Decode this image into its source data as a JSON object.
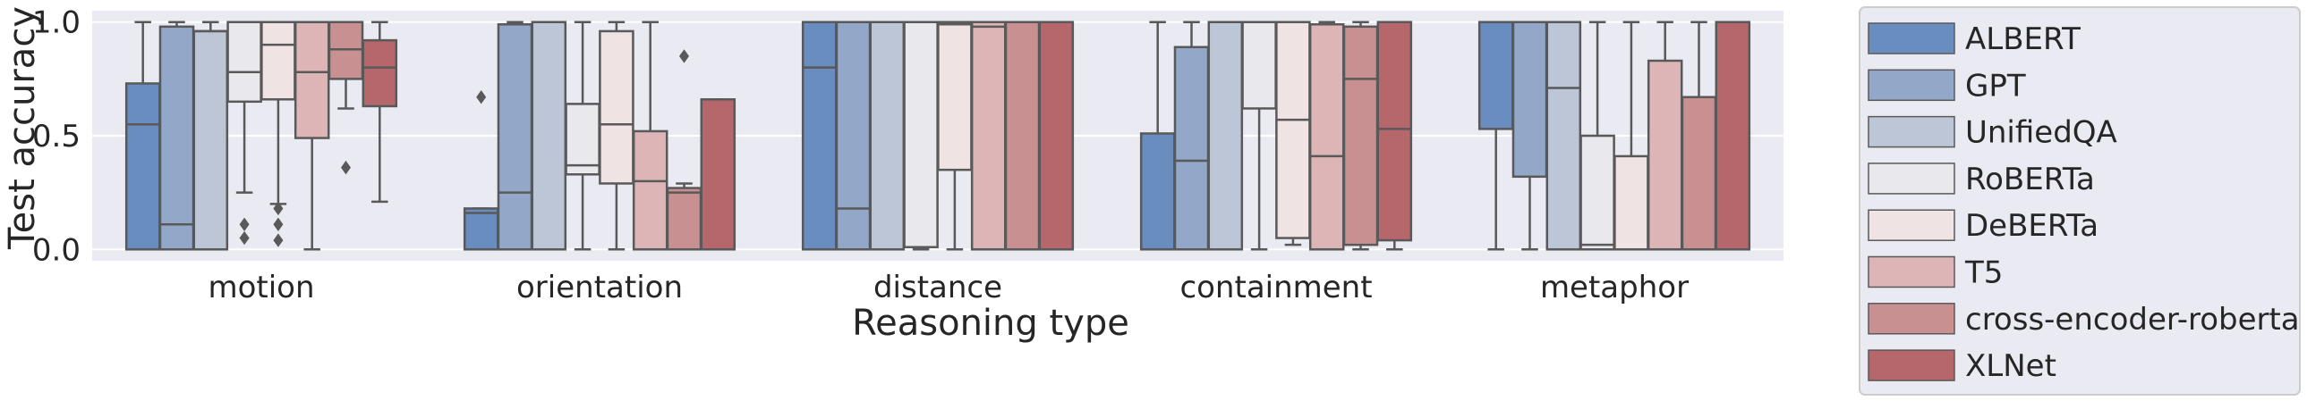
{
  "chart_data": {
    "type": "box",
    "title": "",
    "xlabel": "Reasoning type",
    "ylabel": "Test accuracy",
    "ylim": [
      -0.05,
      1.05
    ],
    "y_ticks": [
      0.0,
      0.5,
      1.0
    ],
    "y_tick_labels": [
      "0.0",
      "0.5",
      "1.0"
    ],
    "grid": true,
    "legend_position": "outside-right",
    "categories": [
      "motion",
      "orientation",
      "distance",
      "containment",
      "metaphor"
    ],
    "series": [
      {
        "name": "ALBERT",
        "color": "#6a8dbf",
        "boxes": [
          {
            "whislo": 0.0,
            "q1": 0.0,
            "med": 0.55,
            "q3": 0.73,
            "whishi": 1.0,
            "fliers": []
          },
          {
            "whislo": 0.0,
            "q1": 0.0,
            "med": 0.16,
            "q3": 0.18,
            "whishi": 0.18,
            "fliers": [
              0.67
            ]
          },
          {
            "whislo": 0.0,
            "q1": 0.0,
            "med": 0.8,
            "q3": 1.0,
            "whishi": 1.0,
            "fliers": []
          },
          {
            "whislo": 0.0,
            "q1": 0.0,
            "med": 0.0,
            "q3": 0.51,
            "whishi": 1.0,
            "fliers": []
          },
          {
            "whislo": 0.0,
            "q1": 0.53,
            "med": 1.0,
            "q3": 1.0,
            "whishi": 1.0,
            "fliers": []
          }
        ]
      },
      {
        "name": "GPT",
        "color": "#93a7c8",
        "boxes": [
          {
            "whislo": 0.0,
            "q1": 0.0,
            "med": 0.11,
            "q3": 0.98,
            "whishi": 1.0,
            "fliers": []
          },
          {
            "whislo": 0.0,
            "q1": 0.0,
            "med": 0.25,
            "q3": 0.99,
            "whishi": 1.0,
            "fliers": []
          },
          {
            "whislo": 0.0,
            "q1": 0.0,
            "med": 0.18,
            "q3": 1.0,
            "whishi": 1.0,
            "fliers": []
          },
          {
            "whislo": 0.0,
            "q1": 0.0,
            "med": 0.39,
            "q3": 0.89,
            "whishi": 1.0,
            "fliers": []
          },
          {
            "whislo": 0.0,
            "q1": 0.32,
            "med": 1.0,
            "q3": 1.0,
            "whishi": 1.0,
            "fliers": []
          }
        ]
      },
      {
        "name": "UnifiedQA",
        "color": "#bcc6d6",
        "boxes": [
          {
            "whislo": 0.0,
            "q1": 0.0,
            "med": 0.96,
            "q3": 0.96,
            "whishi": 1.0,
            "fliers": []
          },
          {
            "whislo": 0.0,
            "q1": 0.0,
            "med": 1.0,
            "q3": 1.0,
            "whishi": 1.0,
            "fliers": []
          },
          {
            "whislo": 0.0,
            "q1": 0.0,
            "med": 1.0,
            "q3": 1.0,
            "whishi": 1.0,
            "fliers": []
          },
          {
            "whislo": 0.0,
            "q1": 0.0,
            "med": 1.0,
            "q3": 1.0,
            "whishi": 1.0,
            "fliers": []
          },
          {
            "whislo": 0.0,
            "q1": 0.0,
            "med": 0.71,
            "q3": 1.0,
            "whishi": 1.0,
            "fliers": []
          }
        ]
      },
      {
        "name": "RoBERTa",
        "color": "#e8e8ed",
        "boxes": [
          {
            "whislo": 0.25,
            "q1": 0.65,
            "med": 0.78,
            "q3": 1.0,
            "whishi": 1.0,
            "fliers": [
              0.11,
              0.05
            ]
          },
          {
            "whislo": 0.0,
            "q1": 0.33,
            "med": 0.37,
            "q3": 0.64,
            "whishi": 1.0,
            "fliers": []
          },
          {
            "whislo": 0.0,
            "q1": 0.01,
            "med": 1.0,
            "q3": 1.0,
            "whishi": 1.0,
            "fliers": []
          },
          {
            "whislo": 0.0,
            "q1": 0.62,
            "med": 1.0,
            "q3": 1.0,
            "whishi": 1.0,
            "fliers": []
          },
          {
            "whislo": 0.0,
            "q1": 0.0,
            "med": 0.02,
            "q3": 0.5,
            "whishi": 1.0,
            "fliers": []
          }
        ]
      },
      {
        "name": "DeBERTa",
        "color": "#f0e3e4",
        "boxes": [
          {
            "whislo": 0.2,
            "q1": 0.66,
            "med": 0.9,
            "q3": 1.0,
            "whishi": 1.0,
            "fliers": [
              0.18,
              0.11,
              0.04
            ]
          },
          {
            "whislo": 0.0,
            "q1": 0.29,
            "med": 0.55,
            "q3": 0.96,
            "whishi": 1.0,
            "fliers": []
          },
          {
            "whislo": 0.0,
            "q1": 0.35,
            "med": 0.99,
            "q3": 1.0,
            "whishi": 1.0,
            "fliers": []
          },
          {
            "whislo": 0.02,
            "q1": 0.05,
            "med": 0.57,
            "q3": 1.0,
            "whishi": 1.0,
            "fliers": []
          },
          {
            "whislo": 0.0,
            "q1": 0.0,
            "med": 0.0,
            "q3": 0.41,
            "whishi": 1.0,
            "fliers": []
          }
        ]
      },
      {
        "name": "T5",
        "color": "#ddb5b6",
        "boxes": [
          {
            "whislo": 0.0,
            "q1": 0.49,
            "med": 0.78,
            "q3": 1.0,
            "whishi": 1.0,
            "fliers": []
          },
          {
            "whislo": 0.0,
            "q1": 0.0,
            "med": 0.3,
            "q3": 0.52,
            "whishi": 1.0,
            "fliers": []
          },
          {
            "whislo": 0.0,
            "q1": 0.0,
            "med": 0.98,
            "q3": 1.0,
            "whishi": 1.0,
            "fliers": []
          },
          {
            "whislo": 0.0,
            "q1": 0.0,
            "med": 0.41,
            "q3": 0.99,
            "whishi": 1.0,
            "fliers": []
          },
          {
            "whislo": 0.0,
            "q1": 0.0,
            "med": 0.0,
            "q3": 0.83,
            "whishi": 1.0,
            "fliers": []
          }
        ]
      },
      {
        "name": "cross-encoder-roberta",
        "color": "#c99091",
        "boxes": [
          {
            "whislo": 0.62,
            "q1": 0.75,
            "med": 0.88,
            "q3": 1.0,
            "whishi": 1.0,
            "fliers": [
              0.36
            ]
          },
          {
            "whislo": 0.0,
            "q1": 0.0,
            "med": 0.25,
            "q3": 0.27,
            "whishi": 0.29,
            "fliers": [
              0.85
            ]
          },
          {
            "whislo": 0.0,
            "q1": 0.0,
            "med": 1.0,
            "q3": 1.0,
            "whishi": 1.0,
            "fliers": []
          },
          {
            "whislo": 0.0,
            "q1": 0.02,
            "med": 0.75,
            "q3": 0.98,
            "whishi": 1.0,
            "fliers": []
          },
          {
            "whislo": 0.0,
            "q1": 0.0,
            "med": 0.0,
            "q3": 0.67,
            "whishi": 1.0,
            "fliers": []
          }
        ]
      },
      {
        "name": "XLNet",
        "color": "#b5676b",
        "boxes": [
          {
            "whislo": 0.21,
            "q1": 0.63,
            "med": 0.8,
            "q3": 0.92,
            "whishi": 1.0,
            "fliers": []
          },
          {
            "whislo": 0.0,
            "q1": 0.0,
            "med": 0.0,
            "q3": 0.66,
            "whishi": 0.66,
            "fliers": []
          },
          {
            "whislo": 0.0,
            "q1": 0.0,
            "med": 1.0,
            "q3": 1.0,
            "whishi": 1.0,
            "fliers": []
          },
          {
            "whislo": 0.0,
            "q1": 0.04,
            "med": 0.53,
            "q3": 1.0,
            "whishi": 1.0,
            "fliers": []
          },
          {
            "whislo": 0.0,
            "q1": 0.0,
            "med": 1.0,
            "q3": 1.0,
            "whishi": 1.0,
            "fliers": []
          }
        ]
      }
    ],
    "colors": {
      "plot_background": "#eaeaf2",
      "gridline": "#ffffff",
      "box_edge": "#595959",
      "legend_background": "#eaeaf2",
      "legend_border": "#cccccc",
      "text": "#262626"
    }
  }
}
